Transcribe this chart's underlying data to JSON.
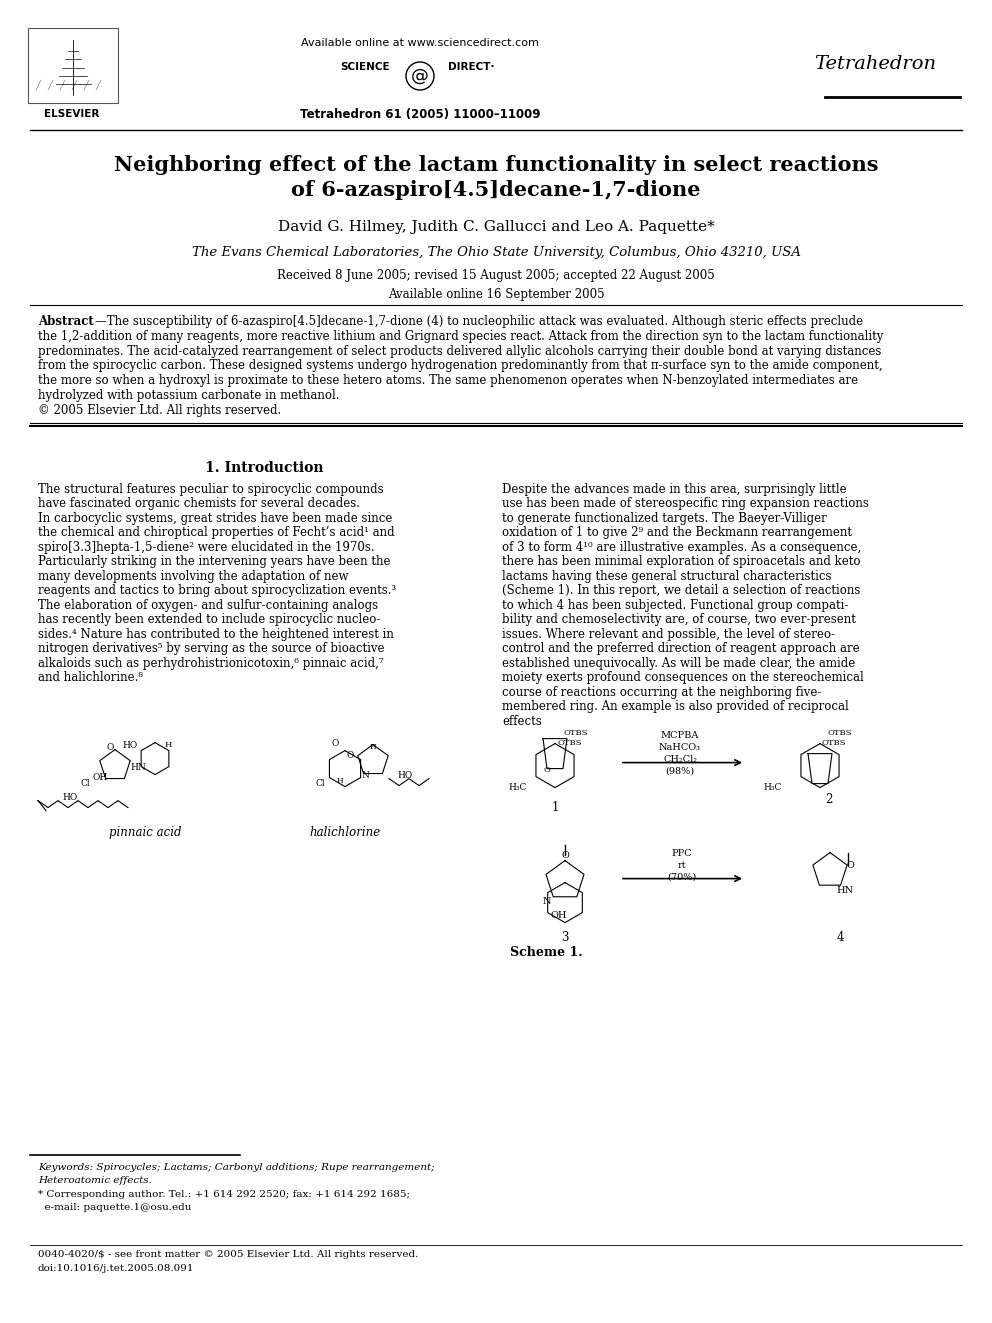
{
  "bg_color": "#ffffff",
  "title_line1": "Neighboring effect of the lactam functionality in select reactions",
  "title_line2": "of 6-azaspiro[4.5]decane-1,7-dione",
  "authors": "David G. Hilmey, Judith C. Gallucci and Leo A. Paquette*",
  "affiliation": "The Evans Chemical Laboratories, The Ohio State University, Columbus, Ohio 43210, USA",
  "received": "Received 8 June 2005; revised 15 August 2005; accepted 22 August 2005",
  "online": "Available online 16 September 2005",
  "journal_name": "Tetrahedron",
  "journal_ref": "Tetrahedron 61 (2005) 11000–11009",
  "available_online_header": "Available online at www.sciencedirect.com",
  "elsevier_text": "ELSEVIER",
  "abstract_label": "Abstract",
  "abstract_lines": [
    "—The susceptibility of 6-azaspiro[4.5]decane-1,7-dione (4) to nucleophilic attack was evaluated. Although steric effects preclude",
    "the 1,2-addition of many reagents, more reactive lithium and Grignard species react. Attack from the direction syn to the lactam functionality",
    "predominates. The acid-catalyzed rearrangement of select products delivered allylic alcohols carrying their double bond at varying distances",
    "from the spirocyclic carbon. These designed systems undergo hydrogenation predominantly from that π-surface syn to the amide component,",
    "the more so when a hydroxyl is proximate to these hetero atoms. The same phenomenon operates when N-benzoylated intermediates are",
    "hydrolyzed with potassium carbonate in methanol.",
    "© 2005 Elsevier Ltd. All rights reserved."
  ],
  "section1_title": "1. Introduction",
  "col1_lines": [
    "The structural features peculiar to spirocyclic compounds",
    "have fascinated organic chemists for several decades.",
    "In carbocyclic systems, great strides have been made since",
    "the chemical and chiroptical properties of Fecht’s acid¹ and",
    "spiro[3.3]hepta-1,5-diene² were elucidated in the 1970s.",
    "Particularly striking in the intervening years have been the",
    "many developments involving the adaptation of new",
    "reagents and tactics to bring about spirocyclization events.³",
    "The elaboration of oxygen- and sulfur-containing analogs",
    "has recently been extended to include spirocyclic nucleo-",
    "sides.⁴ Nature has contributed to the heightened interest in",
    "nitrogen derivatives⁵ by serving as the source of bioactive",
    "alkaloids such as perhydrohistrionicotoxin,⁶ pinnaic acid,⁷",
    "and halichlorine.⁸"
  ],
  "col2_lines": [
    "Despite the advances made in this area, surprisingly little",
    "use has been made of stereospecific ring expansion reactions",
    "to generate functionalized targets. The Baeyer-Villiger",
    "oxidation of 1 to give 2⁹ and the Beckmann rearrangement",
    "of 3 to form 4¹⁰ are illustrative examples. As a consequence,",
    "there has been minimal exploration of spiroacetals and keto",
    "lactams having these general structural characteristics",
    "(Scheme 1). In this report, we detail a selection of reactions",
    "to which 4 has been subjected. Functional group compati-",
    "bility and chemoselectivity are, of course, two ever-present",
    "issues. Where relevant and possible, the level of stereo-",
    "control and the preferred direction of reagent approach are",
    "established unequivocally. As will be made clear, the amide",
    "moiety exerts profound consequences on the stereochemical",
    "course of reactions occurring at the neighboring five-",
    "membered ring. An example is also provided of reciprocal",
    "effects"
  ],
  "pinnaic_label": "pinnaic acid",
  "halichlorine_label": "halichlorine",
  "scheme1_label": "Scheme 1.",
  "keywords_line1": "Keywords: Spirocycles; Lactams; Carbonyl additions; Rupe rearrangement;",
  "keywords_line2": "Heteroatomic effects.",
  "corr_line1": "* Corresponding author. Tel.: +1 614 292 2520; fax: +1 614 292 1685;",
  "corr_line2": "  e-mail: paquette.1@osu.edu",
  "footer_line1": "0040-4020/$ - see front matter © 2005 Elsevier Ltd. All rights reserved.",
  "footer_line2": "doi:10.1016/j.tet.2005.08.091",
  "reagent1_lines": [
    "MCPBA",
    "NaHCO₃",
    "CH₂Cl₂",
    "(98%)"
  ],
  "reagent2_lines": [
    "PPC",
    "rt",
    "(70%)"
  ],
  "compound_labels": [
    "1",
    "2",
    "3",
    "4"
  ],
  "h3c_1": "H₃C",
  "h3c_2": "H₃C",
  "otbs_1": "OTBS",
  "otbs_2": "OTBS",
  "oh_label": "OH",
  "hn_label": "HN",
  "scheme_arrow_color": "#000000",
  "text_color": "#000000",
  "blue_link_color": "#0000cc"
}
